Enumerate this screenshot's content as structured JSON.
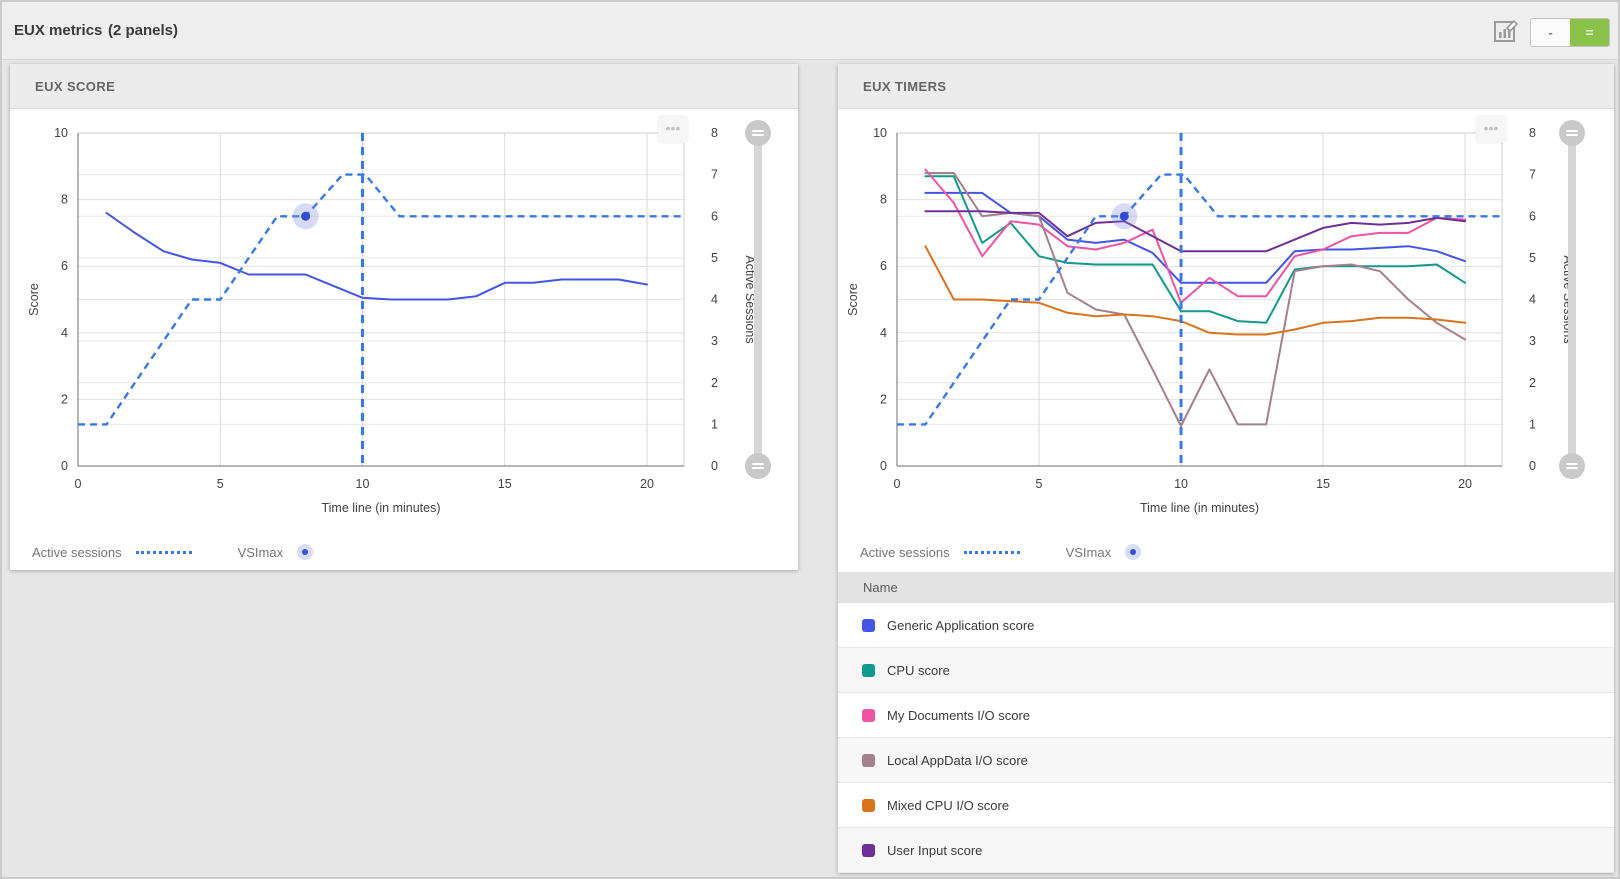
{
  "topbar": {
    "title": "EUX metrics",
    "subtitle": "(2 panels)",
    "edit_chart_icon": "chart-edit",
    "layout_toggle": {
      "single_label": "-",
      "split_label": "="
    }
  },
  "panels": [
    {
      "title": "EUX SCORE",
      "menu_glyph": "•••",
      "legend": {
        "active_sessions_label": "Active sessions",
        "vsimax_label": "VSImax"
      }
    },
    {
      "title": "EUX TIMERS",
      "menu_glyph": "•••",
      "legend": {
        "active_sessions_label": "Active sessions",
        "vsimax_label": "VSImax"
      },
      "table": {
        "header": "Name",
        "rows": [
          {
            "label": "Generic Application score",
            "color": "#4355e2"
          },
          {
            "label": "CPU score",
            "color": "#12998e"
          },
          {
            "label": "My Documents I/O score",
            "color": "#ee54a4"
          },
          {
            "label": "Local AppData I/O score",
            "color": "#a5808a"
          },
          {
            "label": "Mixed CPU I/O score",
            "color": "#d9731c"
          },
          {
            "label": "User Input score",
            "color": "#702f96"
          }
        ]
      }
    }
  ],
  "chart_data": [
    {
      "type": "line",
      "title": "EUX SCORE",
      "xlabel": "Time line (in minutes)",
      "ylabel_left": "Score",
      "ylabel_right": "Active Sessions",
      "xlim": [
        0,
        21.3
      ],
      "ylim_left": [
        0,
        10
      ],
      "ylim_right": [
        0,
        8
      ],
      "xticks": [
        0,
        5,
        10,
        15,
        20
      ],
      "yticks_left": [
        0,
        2,
        4,
        6,
        8,
        10
      ],
      "yticks_right": [
        0,
        1,
        2,
        3,
        4,
        5,
        6,
        7,
        8
      ],
      "grid": true,
      "legend_position": "bottom",
      "vsimax_line_x": 10,
      "vsimax_marker": {
        "x": 8,
        "sessions": 6
      },
      "active_sessions": {
        "name": "Active sessions",
        "axis": "right",
        "style": "dashed",
        "color": "#3a78e8",
        "points": [
          [
            0,
            1
          ],
          [
            1,
            1
          ],
          [
            4,
            4
          ],
          [
            5,
            4
          ],
          [
            7,
            6
          ],
          [
            8,
            6
          ],
          [
            9.3,
            7
          ],
          [
            10.1,
            7
          ],
          [
            11.3,
            6
          ],
          [
            21.3,
            6
          ]
        ]
      },
      "series": [
        {
          "name": "EUX score",
          "axis": "left",
          "color": "#4456e0",
          "points": [
            [
              1,
              7.6
            ],
            [
              2,
              7.0
            ],
            [
              3,
              6.45
            ],
            [
              4,
              6.2
            ],
            [
              5,
              6.1
            ],
            [
              6,
              5.75
            ],
            [
              7,
              5.75
            ],
            [
              8,
              5.75
            ],
            [
              9,
              5.4
            ],
            [
              10,
              5.05
            ],
            [
              11,
              5.0
            ],
            [
              12,
              5.0
            ],
            [
              13,
              5.0
            ],
            [
              14,
              5.1
            ],
            [
              15,
              5.5
            ],
            [
              16,
              5.5
            ],
            [
              17,
              5.6
            ],
            [
              18,
              5.6
            ],
            [
              19,
              5.6
            ],
            [
              20,
              5.45
            ]
          ]
        }
      ]
    },
    {
      "type": "line",
      "title": "EUX TIMERS",
      "xlabel": "Time line (in minutes)",
      "ylabel_left": "Score",
      "ylabel_right": "Active Sessions",
      "xlim": [
        0,
        21.3
      ],
      "ylim_left": [
        0,
        10
      ],
      "ylim_right": [
        0,
        8
      ],
      "xticks": [
        0,
        5,
        10,
        15,
        20
      ],
      "yticks_left": [
        0,
        2,
        4,
        6,
        8,
        10
      ],
      "yticks_right": [
        0,
        1,
        2,
        3,
        4,
        5,
        6,
        7,
        8
      ],
      "grid": true,
      "legend_position": "bottom",
      "vsimax_line_x": 10,
      "vsimax_marker": {
        "x": 8,
        "sessions": 6
      },
      "active_sessions": {
        "name": "Active sessions",
        "axis": "right",
        "style": "dashed",
        "color": "#3a78e8",
        "points": [
          [
            0,
            1
          ],
          [
            1,
            1
          ],
          [
            4,
            4
          ],
          [
            5,
            4
          ],
          [
            7,
            6
          ],
          [
            8,
            6
          ],
          [
            9.3,
            7
          ],
          [
            10.1,
            7
          ],
          [
            11.3,
            6
          ],
          [
            21.3,
            6
          ]
        ]
      },
      "series": [
        {
          "name": "Generic Application score",
          "axis": "left",
          "color": "#4355e2",
          "points": [
            [
              1,
              8.2
            ],
            [
              2,
              8.2
            ],
            [
              3,
              8.2
            ],
            [
              4,
              7.6
            ],
            [
              5,
              7.5
            ],
            [
              6,
              6.8
            ],
            [
              7,
              6.7
            ],
            [
              8,
              6.8
            ],
            [
              9,
              6.4
            ],
            [
              10,
              5.5
            ],
            [
              11,
              5.5
            ],
            [
              12,
              5.5
            ],
            [
              13,
              5.5
            ],
            [
              14,
              6.45
            ],
            [
              15,
              6.5
            ],
            [
              16,
              6.5
            ],
            [
              17,
              6.55
            ],
            [
              18,
              6.6
            ],
            [
              19,
              6.45
            ],
            [
              20,
              6.15
            ]
          ]
        },
        {
          "name": "CPU score",
          "axis": "left",
          "color": "#12998e",
          "points": [
            [
              1,
              8.7
            ],
            [
              2,
              8.7
            ],
            [
              3,
              6.7
            ],
            [
              4,
              7.3
            ],
            [
              5,
              6.3
            ],
            [
              6,
              6.1
            ],
            [
              7,
              6.05
            ],
            [
              8,
              6.05
            ],
            [
              9,
              6.05
            ],
            [
              10,
              4.65
            ],
            [
              11,
              4.65
            ],
            [
              12,
              4.35
            ],
            [
              13,
              4.3
            ],
            [
              14,
              5.9
            ],
            [
              15,
              6.0
            ],
            [
              16,
              6.0
            ],
            [
              17,
              6.0
            ],
            [
              18,
              6.0
            ],
            [
              19,
              6.05
            ],
            [
              20,
              5.5
            ]
          ]
        },
        {
          "name": "My Documents I/O score",
          "axis": "left",
          "color": "#ee54a4",
          "points": [
            [
              1,
              8.9
            ],
            [
              2,
              7.9
            ],
            [
              3,
              6.3
            ],
            [
              4,
              7.35
            ],
            [
              5,
              7.25
            ],
            [
              6,
              6.6
            ],
            [
              7,
              6.5
            ],
            [
              8,
              6.7
            ],
            [
              9,
              7.1
            ],
            [
              10,
              4.9
            ],
            [
              11,
              5.65
            ],
            [
              12,
              5.1
            ],
            [
              13,
              5.1
            ],
            [
              14,
              6.3
            ],
            [
              15,
              6.5
            ],
            [
              16,
              6.9
            ],
            [
              17,
              7.0
            ],
            [
              18,
              7.0
            ],
            [
              19,
              7.45
            ],
            [
              20,
              7.4
            ]
          ]
        },
        {
          "name": "Local AppData I/O score",
          "axis": "left",
          "color": "#a5808a",
          "points": [
            [
              1,
              8.8
            ],
            [
              2,
              8.8
            ],
            [
              3,
              7.5
            ],
            [
              4,
              7.6
            ],
            [
              5,
              7.5
            ],
            [
              6,
              5.2
            ],
            [
              7,
              4.7
            ],
            [
              8,
              4.55
            ],
            [
              9,
              2.9
            ],
            [
              10,
              1.2
            ],
            [
              11,
              2.9
            ],
            [
              12,
              1.25
            ],
            [
              13,
              1.25
            ],
            [
              14,
              5.85
            ],
            [
              15,
              6.0
            ],
            [
              16,
              6.05
            ],
            [
              17,
              5.85
            ],
            [
              18,
              5.0
            ],
            [
              19,
              4.3
            ],
            [
              20,
              3.8
            ]
          ]
        },
        {
          "name": "Mixed CPU I/O score",
          "axis": "left",
          "color": "#d9731c",
          "points": [
            [
              1,
              6.6
            ],
            [
              2,
              5.0
            ],
            [
              3,
              5.0
            ],
            [
              4,
              4.95
            ],
            [
              5,
              4.9
            ],
            [
              6,
              4.6
            ],
            [
              7,
              4.5
            ],
            [
              8,
              4.55
            ],
            [
              9,
              4.5
            ],
            [
              10,
              4.35
            ],
            [
              11,
              4.0
            ],
            [
              12,
              3.95
            ],
            [
              13,
              3.95
            ],
            [
              14,
              4.1
            ],
            [
              15,
              4.3
            ],
            [
              16,
              4.35
            ],
            [
              17,
              4.45
            ],
            [
              18,
              4.45
            ],
            [
              19,
              4.4
            ],
            [
              20,
              4.3
            ]
          ]
        },
        {
          "name": "User Input score",
          "axis": "left",
          "color": "#702f96",
          "points": [
            [
              1,
              7.65
            ],
            [
              2,
              7.65
            ],
            [
              3,
              7.65
            ],
            [
              4,
              7.6
            ],
            [
              5,
              7.6
            ],
            [
              6,
              6.9
            ],
            [
              7,
              7.3
            ],
            [
              8,
              7.35
            ],
            [
              9,
              6.9
            ],
            [
              10,
              6.45
            ],
            [
              11,
              6.45
            ],
            [
              12,
              6.45
            ],
            [
              13,
              6.45
            ],
            [
              14,
              6.8
            ],
            [
              15,
              7.15
            ],
            [
              16,
              7.3
            ],
            [
              17,
              7.25
            ],
            [
              18,
              7.3
            ],
            [
              19,
              7.45
            ],
            [
              20,
              7.35
            ]
          ]
        }
      ]
    }
  ]
}
